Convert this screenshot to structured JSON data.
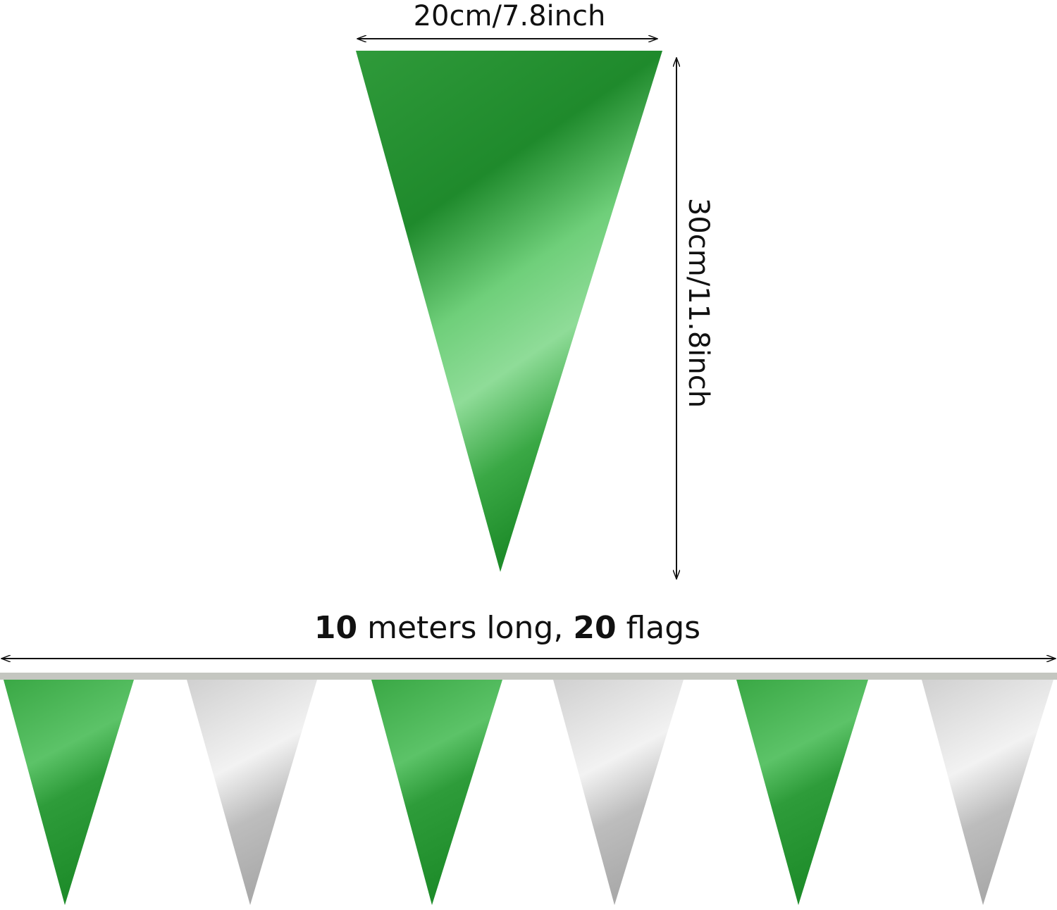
{
  "width_label": "20cm/7.8inch",
  "height_label": "30cm/11.8inch",
  "length_label": {
    "meters": "10",
    "meters_text": "meters long,",
    "flags": "20",
    "flags_text": "flags"
  }
}
